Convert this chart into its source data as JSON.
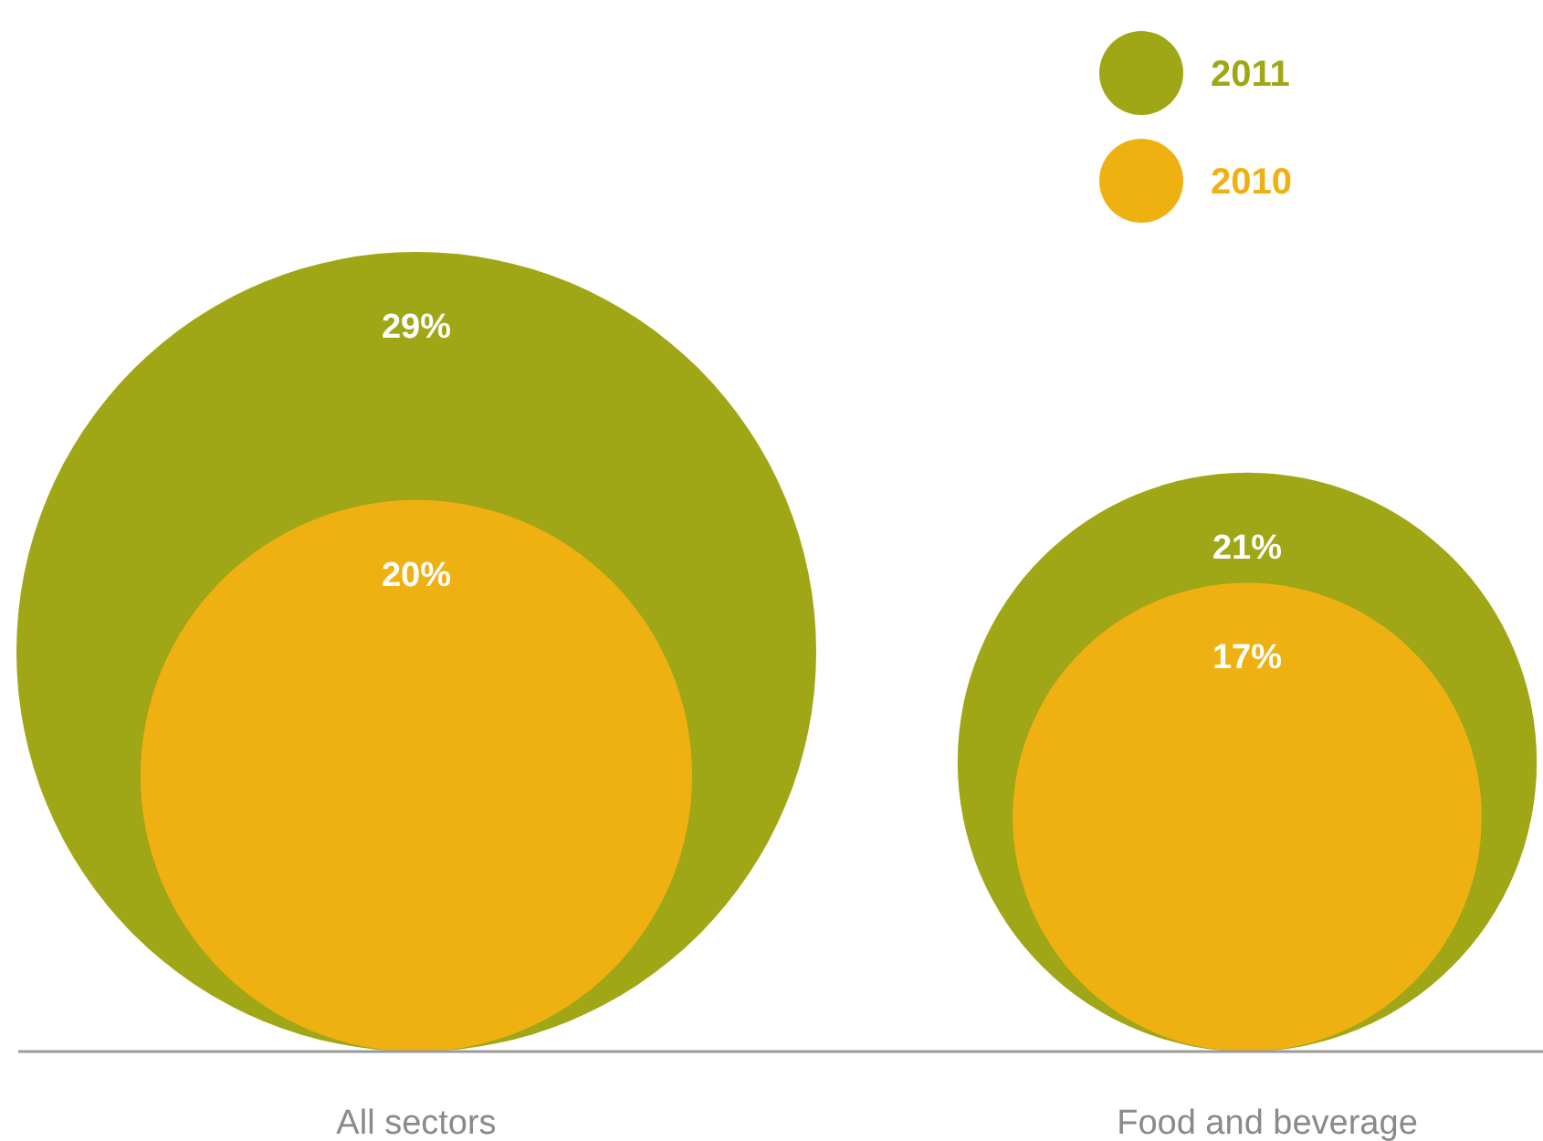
{
  "chart_data": {
    "type": "bubble",
    "categories": [
      "All sectors",
      "Food and beverage"
    ],
    "series": [
      {
        "name": "2011",
        "color": "#a0a716",
        "values": [
          29,
          21
        ],
        "value_labels": [
          "29%",
          "21%"
        ]
      },
      {
        "name": "2010",
        "color": "#efb111",
        "values": [
          20,
          17
        ],
        "value_labels": [
          "20%",
          "17%"
        ]
      }
    ],
    "legend": "top right"
  }
}
